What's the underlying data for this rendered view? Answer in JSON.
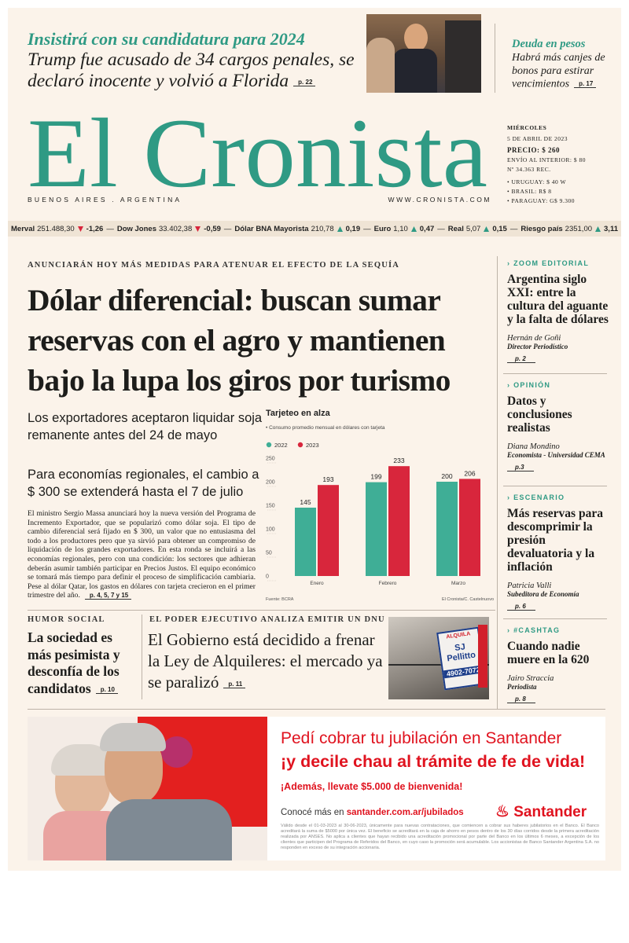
{
  "top": {
    "kicker": "Insistirá con su candidatura para 2024",
    "headline": "Trump fue acusado de 34 cargos penales, se declaró inocente y volvió a Florida",
    "page": "p. 22",
    "side_kicker": "Deuda en pesos",
    "side_headline": "Habrá más canjes de bonos para estirar vencimientos",
    "side_page": "p. 17"
  },
  "masthead": {
    "name": "El Cronista",
    "location": "BUENOS AIRES . ARGENTINA",
    "url": "WWW.CRONISTA.COM",
    "info": [
      "MIÉRCOLES",
      "5 DE ABRIL DE 2023",
      "PRECIO: $ 260",
      "ENVÍO AL INTERIOR: $ 80",
      "Nº 34.363 REC.",
      "• URUGUAY: $ 40 W",
      "• BRASIL: R$ 8",
      "• PARAGUAY: G$ 9.300"
    ]
  },
  "ticker": [
    {
      "name": "Merval",
      "value": "251.488,30",
      "change": "-1,26",
      "direction": "down"
    },
    {
      "name": "Dow Jones",
      "value": "33.402,38",
      "change": "-0,59",
      "direction": "down"
    },
    {
      "name": "Dólar BNA Mayorista",
      "value": "210,78",
      "change": "0,19",
      "direction": "up"
    },
    {
      "name": "Euro",
      "value": "1,10",
      "change": "0,47",
      "direction": "up"
    },
    {
      "name": "Real",
      "value": "5,07",
      "change": "0,15",
      "direction": "up"
    },
    {
      "name": "Riesgo país",
      "value": "2351,00",
      "change": "3,11",
      "direction": "up"
    }
  ],
  "main": {
    "kicker": "ANUNCIARÁN HOY MÁS MEDIDAS PARA ATENUAR EL EFECTO DE LA SEQUÍA",
    "headline_lines": [
      "Dólar diferencial: buscan sumar",
      "reservas con el agro y mantienen",
      "bajo la lupa los giros por turismo"
    ],
    "subhead_1": "Los exportadores aceptaron liquidar soja remanente antes del 24 de mayo",
    "subhead_2": "Para economías regionales, el cambio a $ 300 se extenderá hasta el 7 de julio",
    "body": "El ministro Sergio Massa anunciará hoy la nueva versión del Programa de Incremento Exportador, que se popularizó como dólar soja. El tipo de cambio diferencial será fijado en $ 300, un valor que no entusiasma del todo a los productores pero que ya sirvió para obtener un compromiso de liquidación de los grandes exportadores. En esta ronda se incluirá a las economías regionales, pero con una condición: los sectores que adhieran deberán asumir también participar en Precios Justos. El equipo económico se tomará más tiempo para definir el proceso de simplificación cambiaria. Pese al dólar Qatar, los gastos en dólares con tarjeta crecieron en el primer trimestre del año.",
    "pages": "p. 4, 5, 7 y 15"
  },
  "chart_data": {
    "type": "bar",
    "title": "Tarjeteo en alza",
    "subtitle": "• Consumo promedio mensual en dólares con tarjeta",
    "categories": [
      "Enero",
      "Febrero",
      "Marzo"
    ],
    "series": [
      {
        "name": "2022",
        "color": "#3fae96",
        "values": [
          145,
          199,
          200
        ]
      },
      {
        "name": "2023",
        "color": "#d8263c",
        "values": [
          193,
          233,
          206
        ]
      }
    ],
    "ylim": [
      0,
      250
    ],
    "yticks": [
      0,
      50,
      100,
      150,
      200,
      250
    ],
    "grid": false,
    "source": "Fuente: BCRA",
    "credit": "El Cronista/C. Castelnuovo"
  },
  "bottom": {
    "left_kicker": "HUMOR SOCIAL",
    "left_headline": "La sociedad es más pesimista y desconfía de los candidatos",
    "left_page": "p. 10",
    "center_kicker": "EL PODER EJECUTIVO ANALIZA EMITIR UN DNU",
    "center_headline": "El Gobierno está decidido a frenar la Ley de Alquileres: el mercado ya se paralizó",
    "center_page": "p. 11",
    "photo_sign": [
      "ALQUILA",
      "SJ Pellitto",
      "4902-7072"
    ]
  },
  "sidebar": [
    {
      "section": "ZOOM EDITORIAL",
      "title": "Argentina siglo XXI: entre la cultura del aguante y la falta de dólares",
      "author": "Hernán de Goñi",
      "role": "Director Periodístico",
      "page": "p. 2"
    },
    {
      "section": "OPINIÓN",
      "title": "Datos y conclusiones realistas",
      "author": "Diana Mondino",
      "role": "Economista - Universidad CEMA",
      "page": "p.3"
    },
    {
      "section": "ESCENARIO",
      "title": "Más reservas para descomprimir la presión devaluatoria y la inflación",
      "author": "Patricia Valli",
      "role": "Subeditora de Economía",
      "page": "p. 6"
    },
    {
      "section": "#CASHTAG",
      "title": "Cuando nadie muere en la 620",
      "author": "Jairo Straccia",
      "role": "Periodista",
      "page": "p. 8"
    }
  ],
  "ad": {
    "line_1": "Pedí cobrar tu jubilación en Santander",
    "line_2": "¡y decile chau al trámite de fe de vida!",
    "line_3": "¡Además, llevate $5.000 de bienvenida!",
    "more": "Conocé más en",
    "url": "santander.com.ar/jubilados",
    "brand": "Santander",
    "legal": "Válido desde el 01-03-2023 al 30-06-2023, únicamente para nuevas contrataciones, que comiencen a cobrar sus haberes jubilatorios en el Banco. El Banco acreditará la suma de $5000 por única vez. El beneficio se acreditará en la caja de ahorro en pesos dentro de los 30 días corridos desde la primera acreditación realizada por ANSES. No aplica a clientes que hayan recibido una acreditación promocional por parte del Banco en los últimos 6 meses, a excepción de los clientes que participen del Programa de Referidos del Banco, en cuyo caso la promoción será acumulable. Los accionistas de Banco Santander Argentina S.A. no responden en exceso de su integración accionaria."
  }
}
